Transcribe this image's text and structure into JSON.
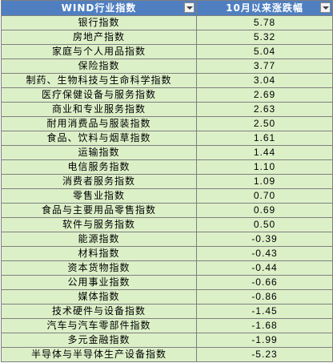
{
  "table": {
    "headers": [
      "WIND行业指数",
      "10月以来涨跌幅"
    ],
    "rows": [
      {
        "name": "银行指数",
        "value": "5.78"
      },
      {
        "name": "房地产指数",
        "value": "5.32"
      },
      {
        "name": "家庭与个人用品指数",
        "value": "5.04"
      },
      {
        "name": "保险指数",
        "value": "3.77"
      },
      {
        "name": "制药、生物科技与生命科学指数",
        "value": "3.04"
      },
      {
        "name": "医疗保健设备与服务指数",
        "value": "2.69"
      },
      {
        "name": "商业和专业服务指数",
        "value": "2.63"
      },
      {
        "name": "耐用消费品与服装指数",
        "value": "2.50"
      },
      {
        "name": "食品、饮料与烟草指数",
        "value": "1.61"
      },
      {
        "name": "运输指数",
        "value": "1.44"
      },
      {
        "name": "电信服务指数",
        "value": "1.10"
      },
      {
        "name": "消费者服务指数",
        "value": "1.09"
      },
      {
        "name": "零售业指数",
        "value": "0.70"
      },
      {
        "name": "食品与主要用品零售指数",
        "value": "0.69"
      },
      {
        "name": "软件与服务指数",
        "value": "0.50"
      },
      {
        "name": "能源指数",
        "value": "-0.39"
      },
      {
        "name": "材料指数",
        "value": "-0.43"
      },
      {
        "name": "资本货物指数",
        "value": "-0.44"
      },
      {
        "name": "公用事业指数",
        "value": "-0.66"
      },
      {
        "name": "媒体指数",
        "value": "-0.86"
      },
      {
        "name": "技术硬件与设备指数",
        "value": "-1.45"
      },
      {
        "name": "汽车与汽车零部件指数",
        "value": "-1.68"
      },
      {
        "name": "多元金融指数",
        "value": "-1.99"
      },
      {
        "name": "半导体与半导体生产设备指数",
        "value": "-5.23"
      }
    ]
  },
  "colors": {
    "header_bg": "#4f7fc0",
    "cell_bg": "#dcf0c8",
    "grid": "#7f7f7f"
  },
  "icons": [
    "filter-dropdown-icon"
  ]
}
